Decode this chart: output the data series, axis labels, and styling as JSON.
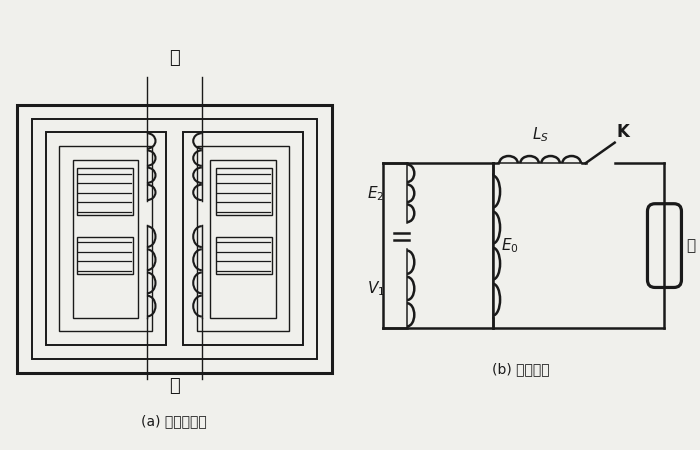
{
  "bg_color": "#f0f0ec",
  "line_color": "#1a1a1a",
  "title_a": "(a) 变压器结构",
  "title_b": "(b) 等效电路",
  "label_chu": "初",
  "label_ci": "次",
  "label_E2": "$E_2$",
  "label_E0": "$E_0$",
  "label_V1": "$V_1$",
  "label_Ls": "$L_S$",
  "label_K": "K",
  "label_deng": "灯"
}
